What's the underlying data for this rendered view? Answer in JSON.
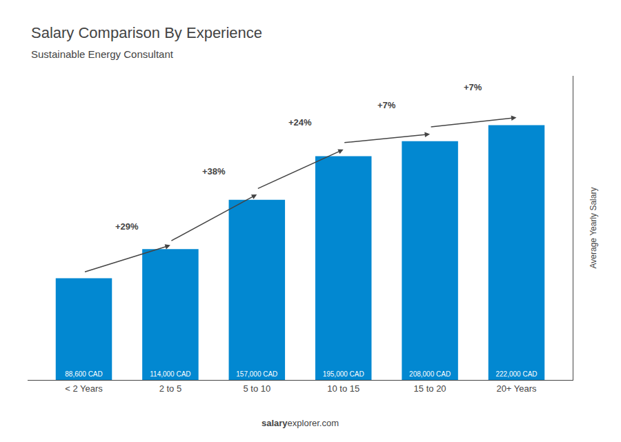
{
  "chart_data": {
    "type": "bar",
    "title": "Salary Comparison By Experience",
    "subtitle": "Sustainable Energy Consultant",
    "ylabel": "Average Yearly Salary",
    "categories": [
      "< 2 Years",
      "2 to 5",
      "5 to 10",
      "10 to 15",
      "15 to 20",
      "20+ Years"
    ],
    "values": [
      88600,
      114000,
      157000,
      195000,
      208000,
      222000
    ],
    "value_labels": [
      "88,600 CAD",
      "114,000 CAD",
      "157,000 CAD",
      "195,000 CAD",
      "208,000 CAD",
      "222,000 CAD"
    ],
    "data_labels": true,
    "color": "#0288d1",
    "annotations": [
      "+29%",
      "+38%",
      "+24%",
      "+7%",
      "+7%"
    ],
    "watermark": [
      "salary",
      "explorer.com"
    ],
    "ylim": [
      0,
      265000
    ],
    "tick_labels": "x",
    "grid": false
  }
}
